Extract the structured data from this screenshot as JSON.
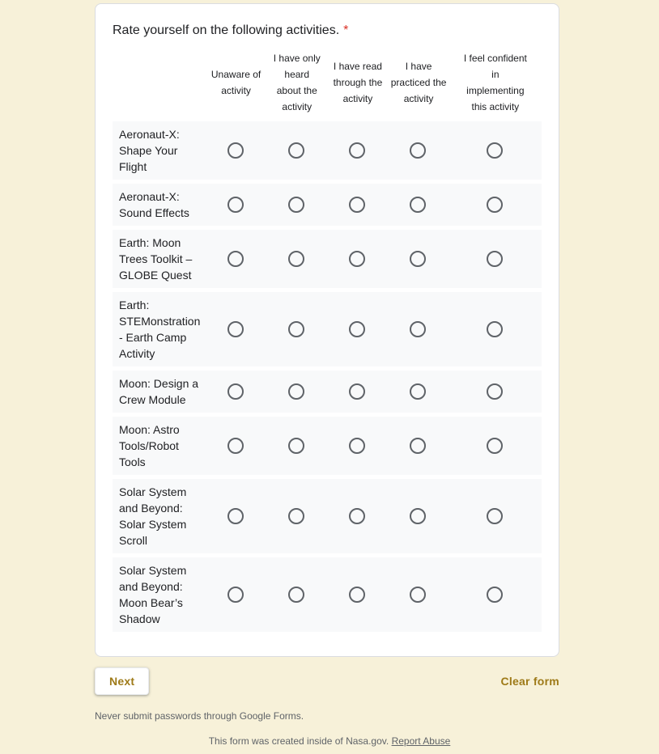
{
  "form": {
    "question": {
      "title": "Rate yourself on the following activities.",
      "required_marker": "*",
      "columns": [
        "Unaware of\nactivity",
        "I have only\nheard\nabout the\nactivity",
        "I have read\nthrough the\nactivity",
        "I have\npracticed the\nactivity",
        "I feel confident\nin\nimplementing\nthis activity"
      ],
      "rows": [
        "Aeronaut-X: Shape Your Flight",
        "Aeronaut-X: Sound Effects",
        "Earth: Moon Trees Toolkit – GLOBE Quest",
        "Earth: STEMonstration - Earth Camp Activity",
        "Moon: Design a Crew Module",
        "Moon: Astro Tools/Robot Tools",
        "Solar System and Beyond: Solar System Scroll",
        "Solar System and Beyond: Moon Bear’s Shadow"
      ],
      "selection_state": "none-selected"
    },
    "actions": {
      "next_label": "Next",
      "clear_label": "Clear form"
    },
    "footer": {
      "password_warning": "Never submit passwords through Google Forms.",
      "created_notice": "This form was created inside of Nasa.gov.",
      "report_abuse_label": "Report Abuse"
    },
    "colors": {
      "page_background": "#f7f1d9",
      "card_background": "#ffffff",
      "row_background": "#f8f9fa",
      "text_primary": "#202124",
      "text_secondary": "#5f6368",
      "accent_gold": "#9e7a18",
      "required_red": "#d93025",
      "radio_border": "#5f6368"
    }
  }
}
